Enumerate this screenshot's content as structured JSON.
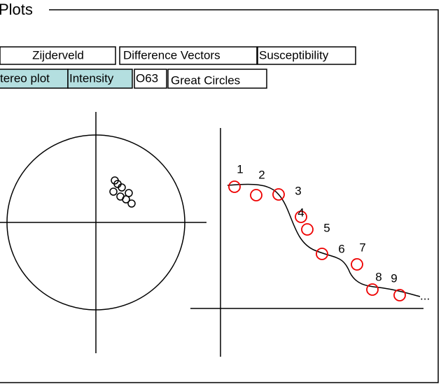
{
  "group": {
    "title": "Plots"
  },
  "tabs": {
    "row1": [
      "Zijderveld",
      "Difference Vectors",
      "Susceptibility"
    ],
    "row2": [
      "tereo plot",
      "Intensity",
      "O63",
      "Great Circles"
    ]
  },
  "intensity_plot": {
    "point_labels": [
      "1",
      "2",
      "3",
      "4",
      "5",
      "6",
      "7",
      "8",
      "9"
    ],
    "continuation": "..."
  }
}
